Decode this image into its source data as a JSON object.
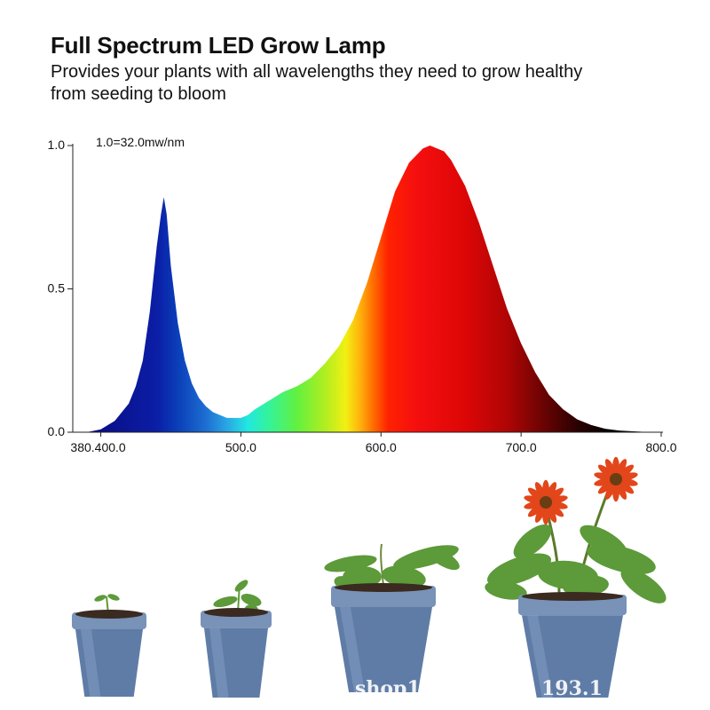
{
  "header": {
    "title": "Full Spectrum LED Grow Lamp",
    "subtitle_line1": "Provides your plants with all wavelengths they need to grow healthy",
    "subtitle_line2": "from seeding to bloom"
  },
  "chart_data": {
    "type": "area",
    "title": "",
    "xlabel": "",
    "ylabel": "",
    "annotation": "1.0=32.0mw/nm",
    "xlim": [
      380,
      800
    ],
    "ylim": [
      0,
      1.0
    ],
    "x_tick_labels": [
      "380.400.0",
      "500.0",
      "600.0",
      "700.0",
      "800.0"
    ],
    "y_tick_labels": [
      "0.0",
      "0.5",
      "1.0"
    ],
    "y_ticks": [
      0.0,
      0.5,
      1.0
    ],
    "fill": "wavelength color gradient",
    "series": [
      {
        "x": [
          390,
          400,
          410,
          420,
          425,
          430,
          435,
          440,
          443,
          445,
          447,
          450,
          455,
          460,
          465,
          470,
          475,
          480,
          485,
          490,
          495,
          500,
          505,
          510,
          520,
          530,
          540,
          550,
          560,
          570,
          580,
          590,
          600,
          610,
          620,
          630,
          635,
          640,
          645,
          650,
          660,
          670,
          680,
          690,
          700,
          710,
          720,
          730,
          740,
          750,
          760,
          770,
          780,
          790,
          800
        ],
        "y": [
          0.0,
          0.01,
          0.04,
          0.1,
          0.16,
          0.25,
          0.42,
          0.65,
          0.76,
          0.82,
          0.76,
          0.58,
          0.38,
          0.25,
          0.17,
          0.12,
          0.09,
          0.07,
          0.06,
          0.05,
          0.05,
          0.05,
          0.06,
          0.08,
          0.11,
          0.14,
          0.16,
          0.19,
          0.24,
          0.3,
          0.39,
          0.52,
          0.68,
          0.84,
          0.94,
          0.99,
          1.0,
          0.99,
          0.98,
          0.95,
          0.86,
          0.73,
          0.58,
          0.43,
          0.31,
          0.21,
          0.13,
          0.08,
          0.045,
          0.025,
          0.012,
          0.006,
          0.003,
          0.001,
          0.0
        ]
      }
    ]
  },
  "photo": {
    "watermark_left": "shop1",
    "watermark_right": "193.1"
  },
  "colors": {
    "pot": "#5f7ca6",
    "pot_rim": "#7892b8",
    "soil": "#3a2a20",
    "leaf": "#5d9a3a",
    "petal": "#e2461a",
    "flower_center": "#6b3d12"
  }
}
